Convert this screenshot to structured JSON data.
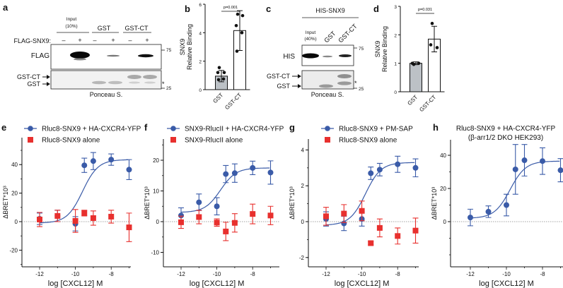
{
  "panel_letters": {
    "a": "a",
    "b": "b",
    "c": "c",
    "d": "d",
    "e": "e",
    "f": "f",
    "g": "g",
    "h": "h"
  },
  "blot_a": {
    "input_label": "Input",
    "input_pct": "(10%)",
    "group_gst": "GST",
    "group_gstct": "GST-CT",
    "row_label": "FLAG-SNX9:",
    "lanes": [
      "–",
      "+",
      "–",
      "+",
      "–",
      "+"
    ],
    "flag_label": "FLAG",
    "gstct_arrow_label": "GST-CT",
    "gst_arrow_label": "GST",
    "mw_75": "75",
    "mw_25": "25",
    "asterisk": "*",
    "ponceau": "Ponceau S."
  },
  "blot_c": {
    "title": "HIS-SNX9",
    "input_label": "Input",
    "input_pct": "(40%)",
    "lane_gst": "GST",
    "lane_gstct": "GST-CT",
    "his_label": "HIS",
    "gstct_arrow_label": "GST-CT",
    "gst_arrow_label": "GST",
    "mw_75": "75",
    "mw_25": "25",
    "asterisk": "*",
    "ponceau": "Ponceau S."
  },
  "colors": {
    "blue": "#3a5ba8",
    "red": "#e8302e",
    "bar_gray": "#bcc1c6"
  },
  "chart_data": [
    {
      "id": "b",
      "type": "bar",
      "ylabel_line1": "SNX9",
      "ylabel_line2": "Relative Binding",
      "categories": [
        "GST",
        "GST-CT"
      ],
      "values": [
        0.95,
        4.15
      ],
      "errors": [
        0.4,
        1.4
      ],
      "points": [
        [
          1.55,
          1.2,
          1.2,
          0.75,
          0.7
        ],
        [
          5.3,
          5.2,
          4.5,
          4.0,
          2.7
        ]
      ],
      "ylim": [
        0,
        6
      ],
      "yticks": [
        "0",
        "2",
        "4",
        "6"
      ],
      "pvalue": "p=0.001"
    },
    {
      "id": "d",
      "type": "bar",
      "ylabel_line1": "SNX9",
      "ylabel_line2": "Relative Binding",
      "categories": [
        "GST",
        "GST-CT"
      ],
      "values": [
        1.0,
        1.85
      ],
      "errors": [
        0.05,
        0.45
      ],
      "points": [
        [
          0.96,
          1.0,
          1.0
        ],
        [
          2.4,
          1.55,
          1.65
        ]
      ],
      "ylim": [
        0,
        3
      ],
      "yticks": [
        "0",
        "1",
        "2",
        "3"
      ],
      "pvalue": "p=0.031"
    },
    {
      "id": "e",
      "type": "scatter",
      "xlabel": "log [CXCL12] M",
      "ylabel": "ΔBRET*10³",
      "xticks": [
        "-12",
        "-10",
        "-8"
      ],
      "yticks": [
        "-20",
        "0",
        "20",
        "40"
      ],
      "x": [
        -12,
        -11,
        -10,
        -9.5,
        -9,
        -8,
        -7
      ],
      "series": [
        {
          "name": "Rluc8-SNX9 + HA-CXCR4-YFP",
          "marker": "circle",
          "values": [
            2,
            4,
            -1.5,
            39.5,
            42.5,
            43.5,
            36.5
          ],
          "errors": [
            4,
            4,
            5,
            5,
            6,
            4,
            7
          ],
          "fit": {
            "bottom": -1,
            "top": 43.5,
            "logEC50": -9.6,
            "hill": 1
          }
        },
        {
          "name": "Rluc8-SNX9 alone",
          "marker": "square",
          "values": [
            1.5,
            4,
            0.5,
            6,
            2.5,
            3.5,
            -4
          ],
          "errors": [
            5,
            4,
            8,
            2,
            5,
            4.5,
            10
          ]
        }
      ]
    },
    {
      "id": "f",
      "type": "scatter",
      "xlabel": "log [CXCL12] M",
      "ylabel": "ΔBRET*10³",
      "xticks": [
        "-12",
        "-10",
        "-8"
      ],
      "yticks": [
        "-10",
        "0",
        "10",
        "20"
      ],
      "x": [
        -12,
        -11,
        -10,
        -9.5,
        -9,
        -8,
        -7
      ],
      "series": [
        {
          "name": "SNX9-RlucII + HA-CXCR4-YFP",
          "marker": "circle",
          "values": [
            2,
            6.3,
            5,
            15.5,
            15.8,
            17.5,
            16
          ],
          "errors": [
            2.5,
            2.7,
            2.8,
            2.8,
            3,
            2.2,
            3.8
          ],
          "fit": {
            "bottom": 3,
            "top": 17.5,
            "logEC50": -9.8,
            "hill": 1
          }
        },
        {
          "name": "SNX9-RlucII alone",
          "marker": "square",
          "values": [
            -0.2,
            1.5,
            -0.3,
            -3.2,
            -0.4,
            2.5,
            2
          ],
          "errors": [
            2,
            2.2,
            1.2,
            3,
            3,
            3.2,
            3
          ]
        }
      ]
    },
    {
      "id": "g",
      "type": "scatter",
      "xlabel": "log [CXCL12] M",
      "ylabel": "ΔBRET*10³",
      "xticks": [
        "-12",
        "-10",
        "-8"
      ],
      "yticks": [
        "-2",
        "0",
        "2",
        "4"
      ],
      "x": [
        -12,
        -11,
        -10,
        -9.5,
        -9,
        -8,
        -7
      ],
      "series": [
        {
          "name": "Rluc8-SNX9 + PM-SAP",
          "marker": "circle",
          "values": [
            0.15,
            -0.1,
            0.15,
            2.7,
            2.9,
            3.2,
            3.0
          ],
          "errors": [
            0.4,
            0.4,
            0.4,
            0.35,
            0.35,
            0.45,
            0.5
          ],
          "fit": {
            "bottom": -0.2,
            "top": 3.3,
            "logEC50": -9.8,
            "hill": 1
          }
        },
        {
          "name": "Rluc8-SNX9 alone",
          "marker": "square",
          "values": [
            0.3,
            0.45,
            0.6,
            -1.2,
            -0.35,
            -0.8,
            -0.5
          ],
          "errors": [
            0.5,
            0.5,
            0.55,
            0.1,
            0.5,
            0.45,
            0.7
          ]
        }
      ]
    },
    {
      "id": "h",
      "type": "scatter",
      "title_line1": "Rluc8-SNX9 + HA-CXCR4-YFP",
      "title_line2": "(β-arr1/2 DKO HEK293)",
      "xlabel": "log [CXCL12] M",
      "ylabel": "ΔBRET*10³",
      "xticks": [
        "-12",
        "-10",
        "-8"
      ],
      "yticks": [
        "0",
        "20",
        "40"
      ],
      "x": [
        -12,
        -11,
        -10,
        -9.5,
        -9,
        -8,
        -7
      ],
      "series": [
        {
          "name": "Rluc8-SNX9 + HA-CXCR4-YFP",
          "marker": "circle",
          "values": [
            2.5,
            6,
            10,
            31.5,
            37,
            36.5,
            31
          ],
          "errors": [
            5,
            3.5,
            6.5,
            15,
            9.5,
            8,
            7
          ],
          "fit": {
            "bottom": 2,
            "top": 36.5,
            "logEC50": -9.8,
            "hill": 1
          }
        }
      ]
    }
  ]
}
